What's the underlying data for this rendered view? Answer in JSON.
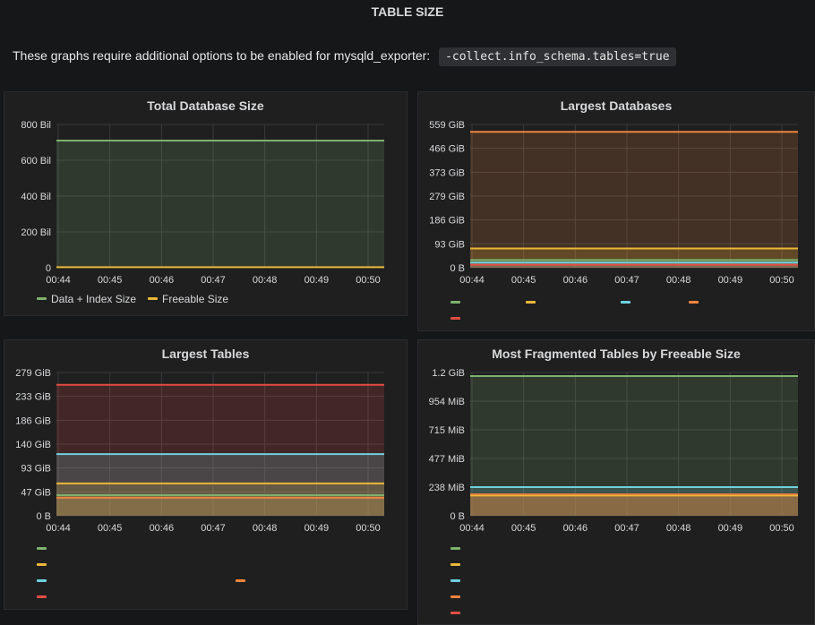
{
  "row": {
    "title": "TABLE SIZE"
  },
  "note": {
    "text": "These graphs require additional options to be enabled for mysqld_exporter:",
    "code": "-collect.info_schema.tables=true"
  },
  "colors": {
    "green": "#7eb26d",
    "yellow": "#eab839",
    "cyan": "#6ed0e0",
    "orange": "#ef843c",
    "red": "#e24d42"
  },
  "panels": [
    {
      "id": "total",
      "title": "Total Database Size",
      "chart_data": {
        "type": "area",
        "x": [
          "00:44",
          "00:45",
          "00:46",
          "00:47",
          "00:48",
          "00:49",
          "00:50"
        ],
        "y_ticks": [
          "800 Bil",
          "600 Bil",
          "400 Bil",
          "200 Bil",
          "0"
        ],
        "ylim": [
          0,
          800
        ],
        "series": [
          {
            "name": "Data + Index Size",
            "color": "#7eb26d",
            "value": 710
          },
          {
            "name": "Freeable Size",
            "color": "#eab839",
            "value": 3
          }
        ]
      }
    },
    {
      "id": "largest-db",
      "title": "Largest Databases",
      "chart_data": {
        "type": "area",
        "x": [
          "00:44",
          "00:45",
          "00:46",
          "00:47",
          "00:48",
          "00:49",
          "00:50"
        ],
        "y_ticks": [
          "559 GiB",
          "466 GiB",
          "373 GiB",
          "279 GiB",
          "186 GiB",
          "93 GiB",
          "0 B"
        ],
        "ylim": [
          0,
          559
        ],
        "series": [
          {
            "color": "#7eb26d",
            "value": 30
          },
          {
            "color": "#eab839",
            "value": 75
          },
          {
            "color": "#6ed0e0",
            "value": 20
          },
          {
            "color": "#ef843c",
            "value": 530
          },
          {
            "color": "#e24d42",
            "value": 12
          }
        ]
      }
    },
    {
      "id": "largest-tables",
      "title": "Largest Tables",
      "chart_data": {
        "type": "area",
        "x": [
          "00:44",
          "00:45",
          "00:46",
          "00:47",
          "00:48",
          "00:49",
          "00:50"
        ],
        "y_ticks": [
          "279 GiB",
          "233 GiB",
          "186 GiB",
          "140 GiB",
          "93 GiB",
          "47 GiB",
          "0 B"
        ],
        "ylim": [
          0,
          279
        ],
        "series": [
          {
            "color": "#7eb26d",
            "value": 40
          },
          {
            "color": "#eab839",
            "value": 63
          },
          {
            "color": "#6ed0e0",
            "value": 120
          },
          {
            "color": "#ef843c",
            "value": 35
          },
          {
            "color": "#e24d42",
            "value": 255
          }
        ]
      }
    },
    {
      "id": "fragmented",
      "title": "Most Fragmented Tables by Freeable Size",
      "chart_data": {
        "type": "area",
        "x": [
          "00:44",
          "00:45",
          "00:46",
          "00:47",
          "00:48",
          "00:49",
          "00:50"
        ],
        "y_ticks": [
          "1.2 GiB",
          "954 MiB",
          "715 MiB",
          "477 MiB",
          "238 MiB",
          "0 B"
        ],
        "ylim": [
          0,
          1.2
        ],
        "series": [
          {
            "color": "#7eb26d",
            "value": 1.17
          },
          {
            "color": "#eab839",
            "value": 0.17
          },
          {
            "color": "#6ed0e0",
            "value": 0.24
          },
          {
            "color": "#ef843c",
            "value": 0.18
          },
          {
            "color": "#e24d42",
            "value": 0.175
          }
        ]
      }
    }
  ]
}
